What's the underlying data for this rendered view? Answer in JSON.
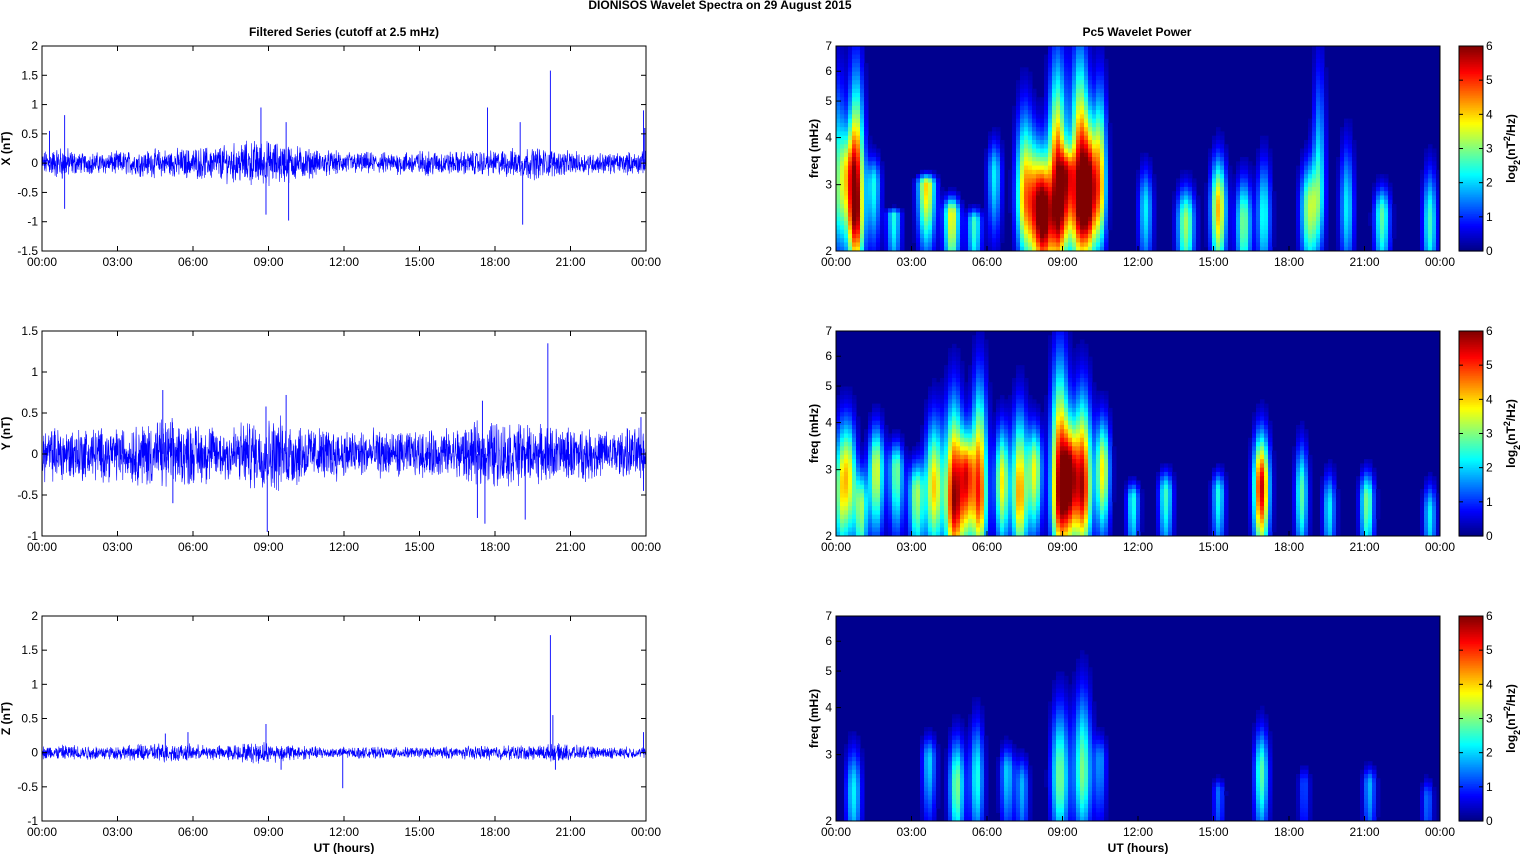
{
  "figure_title": "DIONISOS Wavelet Spectra on 29 August    2015",
  "left_title": "Filtered Series (cutoff at 2.5 mHz)",
  "right_title": "Pc5 Wavelet Power",
  "xlabel": "UT (hours)",
  "freq_label": "freq (mHz)",
  "colorbar_label": "log2(nT2/Hz)",
  "colors": {
    "trace": "#0000ff",
    "background": "#00008f"
  },
  "chart_data": [
    {
      "type": "line",
      "title": "Filtered Series (cutoff at 2.5 mHz)",
      "component": "X",
      "ylabel": "X (nT)",
      "xlabel": "",
      "xlim": [
        0,
        24
      ],
      "ylim": [
        -1.5,
        2
      ],
      "x_tick_labels": [
        "00:00",
        "03:00",
        "06:00",
        "09:00",
        "12:00",
        "15:00",
        "18:00",
        "21:00",
        "00:00"
      ],
      "y_ticks": [
        -1.5,
        -1,
        -0.5,
        0,
        0.5,
        1,
        1.5,
        2
      ],
      "y_tick_labels": [
        "-1.5",
        "-1",
        "-0.5",
        "0",
        "0.5",
        "1",
        "1.5",
        "2"
      ],
      "baseline_noise_amplitude": 0.15,
      "envelope_nodes": [
        [
          0,
          1.0
        ],
        [
          0.8,
          1.5
        ],
        [
          1.5,
          0.9
        ],
        [
          3,
          1.0
        ],
        [
          4.5,
          1.2
        ],
        [
          6,
          1.3
        ],
        [
          7,
          1.5
        ],
        [
          8.5,
          2.0
        ],
        [
          9.5,
          1.8
        ],
        [
          11,
          1.1
        ],
        [
          12,
          1.0
        ],
        [
          13.5,
          0.9
        ],
        [
          15,
          1.1
        ],
        [
          16.5,
          1.0
        ],
        [
          18,
          1.1
        ],
        [
          19.5,
          1.4
        ],
        [
          21,
          1.0
        ],
        [
          22.5,
          0.9
        ],
        [
          24,
          1.0
        ]
      ],
      "spikes": [
        [
          0.3,
          0.55
        ],
        [
          0.9,
          0.82
        ],
        [
          0.9,
          -0.78
        ],
        [
          8.7,
          0.95
        ],
        [
          8.9,
          -0.88
        ],
        [
          9.7,
          0.7
        ],
        [
          9.8,
          -0.98
        ],
        [
          17.7,
          0.95
        ],
        [
          19,
          0.7
        ],
        [
          19.1,
          -1.05
        ],
        [
          20.2,
          1.58
        ],
        [
          23.9,
          0.9
        ],
        [
          23.95,
          0.6
        ]
      ]
    },
    {
      "type": "line",
      "component": "Y",
      "ylabel": "Y (nT)",
      "xlabel": "",
      "xlim": [
        0,
        24
      ],
      "ylim": [
        -1,
        1.5
      ],
      "x_tick_labels": [
        "00:00",
        "03:00",
        "06:00",
        "09:00",
        "12:00",
        "15:00",
        "18:00",
        "21:00",
        "00:00"
      ],
      "y_ticks": [
        -1,
        -0.5,
        0,
        0.5,
        1,
        1.5
      ],
      "y_tick_labels": [
        "-1",
        "-0.5",
        "0",
        "0.5",
        "1",
        "1.5"
      ],
      "baseline_noise_amplitude": 0.2,
      "envelope_nodes": [
        [
          0,
          1.2
        ],
        [
          1,
          1.3
        ],
        [
          3,
          1.2
        ],
        [
          4.5,
          1.6
        ],
        [
          5.5,
          1.5
        ],
        [
          7,
          1.3
        ],
        [
          8.5,
          1.6
        ],
        [
          9.5,
          1.7
        ],
        [
          11,
          1.2
        ],
        [
          13,
          1.1
        ],
        [
          15,
          1.0
        ],
        [
          17,
          1.3
        ],
        [
          17.8,
          1.6
        ],
        [
          19,
          1.4
        ],
        [
          21,
          1.2
        ],
        [
          22.5,
          1.1
        ],
        [
          24,
          1.2
        ]
      ],
      "spikes": [
        [
          4.8,
          0.78
        ],
        [
          5.2,
          -0.6
        ],
        [
          8.9,
          0.58
        ],
        [
          8.95,
          -0.95
        ],
        [
          9.7,
          0.72
        ],
        [
          17.3,
          -0.78
        ],
        [
          17.5,
          0.65
        ],
        [
          17.6,
          -0.85
        ],
        [
          19.2,
          -0.8
        ],
        [
          20.1,
          1.35
        ],
        [
          23.8,
          0.45
        ],
        [
          23.9,
          -0.45
        ]
      ]
    },
    {
      "type": "line",
      "component": "Z",
      "ylabel": "Z (nT)",
      "xlabel": "UT (hours)",
      "xlim": [
        0,
        24
      ],
      "ylim": [
        -1,
        2
      ],
      "x_tick_labels": [
        "00:00",
        "03:00",
        "06:00",
        "09:00",
        "12:00",
        "15:00",
        "18:00",
        "21:00",
        "00:00"
      ],
      "y_ticks": [
        -1,
        -0.5,
        0,
        0.5,
        1,
        1.5,
        2
      ],
      "y_tick_labels": [
        "-1",
        "-0.5",
        "0",
        "0.5",
        "1",
        "1.5",
        "2"
      ],
      "baseline_noise_amplitude": 0.06,
      "envelope_nodes": [
        [
          0,
          1.2
        ],
        [
          1,
          1.5
        ],
        [
          3,
          1.2
        ],
        [
          4.5,
          1.8
        ],
        [
          5.5,
          1.6
        ],
        [
          7,
          1.3
        ],
        [
          8.8,
          2.0
        ],
        [
          9.5,
          1.6
        ],
        [
          11,
          1.1
        ],
        [
          13,
          1.0
        ],
        [
          15,
          1.0
        ],
        [
          17,
          1.2
        ],
        [
          18,
          1.3
        ],
        [
          19.5,
          1.4
        ],
        [
          20.5,
          1.6
        ],
        [
          22,
          1.1
        ],
        [
          24,
          1.0
        ]
      ],
      "spikes": [
        [
          4.9,
          0.28
        ],
        [
          5.8,
          0.3
        ],
        [
          8.9,
          0.42
        ],
        [
          9.5,
          -0.25
        ],
        [
          11.95,
          -0.52
        ],
        [
          20.2,
          1.72
        ],
        [
          20.3,
          0.55
        ],
        [
          20.4,
          -0.25
        ],
        [
          23.9,
          0.3
        ]
      ]
    },
    {
      "type": "heatmap",
      "title": "Pc5 Wavelet Power",
      "component": "X",
      "ylabel": "freq (mHz)",
      "xlim": [
        0,
        24
      ],
      "ylim": [
        2,
        7
      ],
      "y_scale": "log",
      "x_tick_labels": [
        "00:00",
        "03:00",
        "06:00",
        "09:00",
        "12:00",
        "15:00",
        "18:00",
        "21:00",
        "00:00"
      ],
      "y_ticks": [
        2,
        3,
        4,
        5,
        6,
        7
      ],
      "y_tick_labels": [
        "2",
        "3",
        "4",
        "5",
        "6",
        "7"
      ],
      "colorbar": {
        "label": "log2(nT2/Hz)",
        "range": [
          0,
          6
        ],
        "ticks": [
          "0",
          "1",
          "2",
          "3",
          "4",
          "5",
          "6"
        ],
        "colormap": "jet"
      },
      "blobs": [
        [
          0.1,
          2.9,
          0.18,
          6.0,
          2.6
        ],
        [
          0.45,
          3.2,
          0.2,
          4.2,
          2.5
        ],
        [
          0.8,
          2.6,
          0.22,
          5.8,
          6.0
        ],
        [
          1.5,
          3.0,
          0.2,
          3.6,
          2.3
        ],
        [
          2.3,
          2.5,
          0.2,
          2.6,
          2.4
        ],
        [
          3.6,
          3.0,
          0.25,
          3.2,
          4.0
        ],
        [
          4.6,
          2.5,
          0.22,
          2.8,
          3.8
        ],
        [
          5.5,
          2.4,
          0.2,
          2.6,
          2.6
        ],
        [
          6.3,
          3.2,
          0.2,
          4.0,
          2.2
        ],
        [
          7.5,
          2.8,
          0.25,
          4.8,
          4.0
        ],
        [
          8.0,
          2.6,
          0.25,
          3.9,
          4.4
        ],
        [
          8.3,
          2.5,
          0.2,
          3.5,
          3.8
        ],
        [
          8.8,
          2.6,
          0.25,
          6.2,
          6.0
        ],
        [
          9.2,
          3.2,
          0.2,
          3.8,
          3.4
        ],
        [
          9.7,
          2.7,
          0.25,
          6.6,
          6.0
        ],
        [
          10.1,
          2.9,
          0.2,
          4.4,
          4.8
        ],
        [
          10.5,
          3.0,
          0.18,
          5.6,
          4.0
        ],
        [
          12.3,
          2.6,
          0.2,
          3.4,
          2.2
        ],
        [
          13.9,
          2.4,
          0.25,
          3.0,
          3.2
        ],
        [
          15.2,
          2.6,
          0.22,
          3.6,
          4.2
        ],
        [
          16.2,
          2.4,
          0.22,
          3.2,
          3.0
        ],
        [
          17.0,
          2.5,
          0.2,
          3.6,
          2.4
        ],
        [
          18.8,
          2.6,
          0.25,
          3.5,
          3.2
        ],
        [
          19.2,
          3.0,
          0.18,
          6.6,
          2.2
        ],
        [
          20.3,
          2.6,
          0.2,
          4.0,
          2.2
        ],
        [
          21.7,
          2.5,
          0.22,
          3.0,
          2.8
        ],
        [
          23.6,
          2.4,
          0.2,
          3.4,
          2.6
        ]
      ]
    },
    {
      "type": "heatmap",
      "component": "Y",
      "ylabel": "freq (mHz)",
      "xlim": [
        0,
        24
      ],
      "ylim": [
        2,
        7
      ],
      "y_scale": "log",
      "x_tick_labels": [
        "00:00",
        "03:00",
        "06:00",
        "09:00",
        "12:00",
        "15:00",
        "18:00",
        "21:00",
        "00:00"
      ],
      "y_ticks": [
        2,
        3,
        4,
        5,
        6,
        7
      ],
      "y_tick_labels": [
        "2",
        "3",
        "4",
        "5",
        "6",
        "7"
      ],
      "colorbar": {
        "label": "log2(nT2/Hz)",
        "range": [
          0,
          6
        ],
        "ticks": [
          "0",
          "1",
          "2",
          "3",
          "4",
          "5",
          "6"
        ],
        "colormap": "jet"
      },
      "blobs": [
        [
          0.15,
          2.6,
          0.18,
          4.0,
          2.6
        ],
        [
          0.5,
          2.9,
          0.22,
          4.2,
          3.6
        ],
        [
          1.0,
          2.4,
          0.18,
          3.0,
          3.0
        ],
        [
          1.6,
          3.0,
          0.22,
          4.0,
          3.6
        ],
        [
          2.4,
          3.0,
          0.2,
          3.6,
          3.0
        ],
        [
          3.2,
          2.6,
          0.22,
          3.2,
          3.2
        ],
        [
          3.9,
          2.7,
          0.25,
          4.2,
          4.0
        ],
        [
          4.7,
          2.5,
          0.25,
          4.6,
          5.8
        ],
        [
          5.2,
          2.9,
          0.2,
          3.8,
          4.4
        ],
        [
          5.7,
          2.6,
          0.22,
          5.2,
          5.0
        ],
        [
          6.6,
          2.8,
          0.2,
          4.0,
          3.8
        ],
        [
          7.3,
          2.6,
          0.22,
          4.4,
          4.4
        ],
        [
          7.9,
          3.0,
          0.2,
          4.0,
          3.6
        ],
        [
          8.9,
          2.6,
          0.25,
          5.8,
          5.8
        ],
        [
          9.3,
          2.9,
          0.2,
          4.0,
          4.4
        ],
        [
          9.8,
          2.7,
          0.25,
          4.8,
          5.6
        ],
        [
          10.6,
          3.0,
          0.2,
          4.2,
          3.8
        ],
        [
          11.8,
          2.5,
          0.18,
          2.8,
          2.4
        ],
        [
          13.1,
          2.6,
          0.2,
          3.0,
          2.6
        ],
        [
          15.2,
          2.6,
          0.18,
          3.0,
          2.4
        ],
        [
          16.9,
          2.7,
          0.22,
          3.8,
          5.6
        ],
        [
          18.5,
          2.6,
          0.18,
          3.6,
          2.8
        ],
        [
          19.6,
          2.4,
          0.18,
          3.0,
          2.2
        ],
        [
          21.1,
          2.5,
          0.2,
          3.0,
          3.0
        ],
        [
          23.6,
          2.3,
          0.18,
          2.8,
          2.2
        ]
      ]
    },
    {
      "type": "heatmap",
      "component": "Z",
      "ylabel": "freq (mHz)",
      "xlabel": "UT (hours)",
      "xlim": [
        0,
        24
      ],
      "ylim": [
        2,
        7
      ],
      "y_scale": "log",
      "x_tick_labels": [
        "00:00",
        "03:00",
        "06:00",
        "09:00",
        "12:00",
        "15:00",
        "18:00",
        "21:00",
        "00:00"
      ],
      "y_ticks": [
        2,
        3,
        4,
        5,
        6,
        7
      ],
      "y_tick_labels": [
        "2",
        "3",
        "4",
        "5",
        "6",
        "7"
      ],
      "colorbar": {
        "label": "log2(nT2/Hz)",
        "range": [
          0,
          6
        ],
        "ticks": [
          "0",
          "1",
          "2",
          "3",
          "4",
          "5",
          "6"
        ],
        "colormap": "jet"
      },
      "blobs": [
        [
          0.7,
          2.4,
          0.22,
          3.2,
          2.2
        ],
        [
          3.7,
          2.9,
          0.2,
          3.4,
          2.0
        ],
        [
          4.8,
          2.5,
          0.22,
          3.4,
          3.0
        ],
        [
          5.6,
          2.6,
          0.2,
          3.8,
          2.4
        ],
        [
          6.8,
          2.7,
          0.2,
          3.2,
          2.0
        ],
        [
          7.4,
          2.5,
          0.18,
          3.0,
          1.8
        ],
        [
          8.9,
          2.6,
          0.25,
          4.2,
          3.0
        ],
        [
          9.8,
          2.7,
          0.25,
          4.6,
          3.0
        ],
        [
          10.5,
          2.9,
          0.18,
          3.4,
          1.6
        ],
        [
          15.2,
          2.4,
          0.16,
          2.6,
          1.4
        ],
        [
          16.9,
          2.7,
          0.2,
          3.6,
          2.8
        ],
        [
          18.6,
          2.5,
          0.16,
          2.8,
          1.2
        ],
        [
          21.2,
          2.5,
          0.18,
          2.8,
          1.8
        ],
        [
          23.5,
          2.3,
          0.16,
          2.6,
          1.4
        ]
      ]
    }
  ]
}
